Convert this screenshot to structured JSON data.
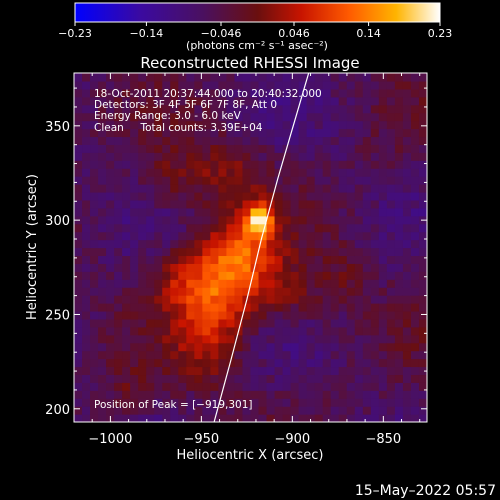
{
  "chart_data": {
    "type": "heatmap",
    "title": "Reconstructed RHESSI Image",
    "xlabel": "Heliocentric X (arcsec)",
    "ylabel": "Heliocentric Y (arcsec)",
    "xlim": [
      -1020,
      -826
    ],
    "ylim": [
      193,
      378
    ],
    "x_ticks": [
      -1000,
      -950,
      -900,
      -850
    ],
    "y_ticks": [
      200,
      250,
      300,
      350
    ],
    "x_tick_labels": [
      "−1000",
      "−950",
      "−900",
      "−850"
    ],
    "y_tick_labels": [
      "200",
      "250",
      "300",
      "350"
    ],
    "colorbar": {
      "min": -0.23,
      "max": 0.23,
      "ticks": [
        -0.23,
        -0.14,
        -0.046,
        0.046,
        0.14,
        0.23
      ],
      "tick_labels": [
        "−0.23",
        "−0.14",
        "−0.046",
        "0.046",
        "0.14",
        "0.23"
      ],
      "unit_label": "(photons cm⁻² s⁻¹ asec⁻²)",
      "colormap": "rhessi-blue-purple-red-yellow-white"
    },
    "annotations": [
      "18-Oct-2011 20:37:44.000 to 20:40:32.000",
      "Detectors: 3F 4F 5F 6F 7F 8F, Att 0",
      "Energy Range: 3.0 - 6.0 keV",
      "Clean     Total counts: 3.39E+04"
    ],
    "peak_label": "Position of Peak = [−919,301]",
    "peak": [
      -919,
      301
    ],
    "limb_curve": [
      [
        -943,
        193
      ],
      [
        -934,
        225
      ],
      [
        -925,
        258
      ],
      [
        -917,
        290
      ],
      [
        -908,
        322
      ],
      [
        -898,
        355
      ],
      [
        -891,
        378
      ]
    ],
    "emission_sources": [
      {
        "x": -918,
        "y": 301,
        "sx": 5,
        "sy": 6,
        "amp": 0.19
      },
      {
        "x": -926,
        "y": 286,
        "sx": 13,
        "sy": 14,
        "amp": 0.11
      },
      {
        "x": -938,
        "y": 268,
        "sx": 14,
        "sy": 18,
        "amp": 0.1
      },
      {
        "x": -947,
        "y": 244,
        "sx": 14,
        "sy": 22,
        "amp": 0.09
      },
      {
        "x": -962,
        "y": 270,
        "sx": 12,
        "sy": 12,
        "amp": 0.07
      },
      {
        "x": -905,
        "y": 262,
        "sx": 16,
        "sy": 12,
        "amp": 0.07
      },
      {
        "x": -935,
        "y": 326,
        "sx": 14,
        "sy": 12,
        "amp": 0.07
      },
      {
        "x": -966,
        "y": 322,
        "sx": 12,
        "sy": 12,
        "amp": 0.05
      },
      {
        "x": -990,
        "y": 210,
        "sx": 9,
        "sy": 9,
        "amp": 0.04
      },
      {
        "x": -870,
        "y": 270,
        "sx": 10,
        "sy": 12,
        "amp": 0.035
      }
    ],
    "background_level": -0.06
  },
  "timestamp": "15–May–2022 05:57",
  "colors": {
    "background": "#000000",
    "foreground": "#ffffff"
  }
}
